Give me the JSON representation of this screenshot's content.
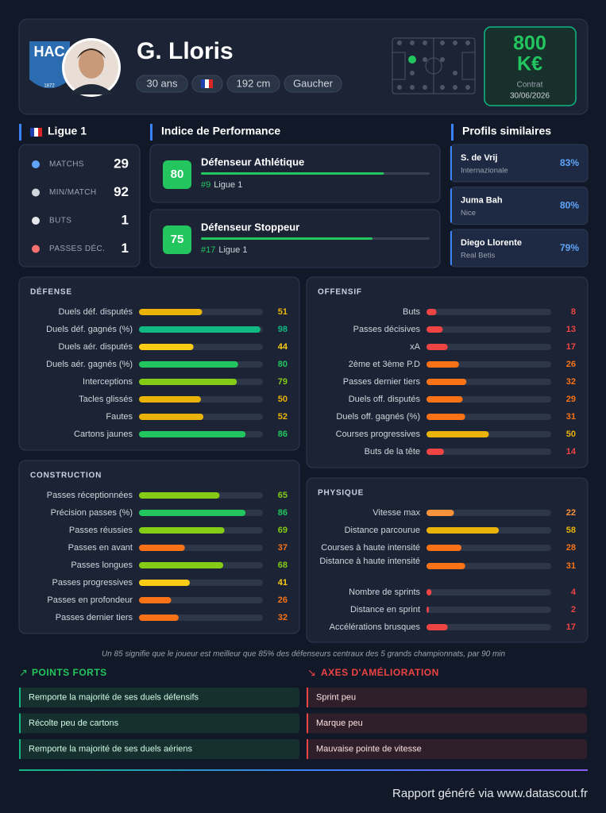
{
  "header": {
    "club_logo": {
      "text": "HAC",
      "year": "1872"
    },
    "name": "G. Lloris",
    "tags": [
      "30 ans",
      "192 cm",
      "Gaucher"
    ],
    "value": {
      "amount": "800",
      "unit": "K€",
      "contract_label": "Contrat",
      "contract_date": "30/06/2026"
    }
  },
  "league": {
    "title": "Ligue 1",
    "stats": [
      {
        "label": "MATCHS",
        "value": 29
      },
      {
        "label": "MIN/MATCH",
        "value": 92
      },
      {
        "label": "BUTS",
        "value": 1
      },
      {
        "label": "PASSES DÉC.",
        "value": 1
      }
    ]
  },
  "performance": {
    "title": "Indice de Performance",
    "profiles": [
      {
        "name": "Défenseur Athlétique",
        "score": 80,
        "rank": "#9",
        "league": "Ligue 1"
      },
      {
        "name": "Défenseur Stoppeur",
        "score": 75,
        "rank": "#17",
        "league": "Ligue 1"
      }
    ]
  },
  "similar": {
    "title": "Profils similaires",
    "players": [
      {
        "name": "S. de Vrij",
        "club": "Internazionale",
        "match": "83%"
      },
      {
        "name": "Juma Bah",
        "club": "Nice",
        "match": "80%"
      },
      {
        "name": "Diego Llorente",
        "club": "Real Betis",
        "match": "79%"
      }
    ]
  },
  "panels": [
    {
      "title": "DÉFENSE",
      "rows": [
        {
          "label": "Duels déf. disputés",
          "value": 51
        },
        {
          "label": "Duels déf. gagnés (%)",
          "value": 98
        },
        {
          "label": "Duels aér. disputés",
          "value": 44
        },
        {
          "label": "Duels aér. gagnés (%)",
          "value": 80
        },
        {
          "label": "Interceptions",
          "value": 79
        },
        {
          "label": "Tacles glissés",
          "value": 50
        },
        {
          "label": "Fautes",
          "value": 52
        },
        {
          "label": "Cartons jaunes",
          "value": 86
        }
      ]
    },
    {
      "title": "CONSTRUCTION",
      "rows": [
        {
          "label": "Passes réceptionnées",
          "value": 65
        },
        {
          "label": "Précision passes (%)",
          "value": 86
        },
        {
          "label": "Passes réussies",
          "value": 69
        },
        {
          "label": "Passes en avant",
          "value": 37
        },
        {
          "label": "Passes longues",
          "value": 68
        },
        {
          "label": "Passes progressives",
          "value": 41
        },
        {
          "label": "Passes en profondeur",
          "value": 26
        },
        {
          "label": "Passes dernier tiers",
          "value": 32
        }
      ]
    },
    {
      "title": "OFFENSIF",
      "rows": [
        {
          "label": "Buts",
          "value": 8
        },
        {
          "label": "Passes décisives",
          "value": 13
        },
        {
          "label": "xA",
          "value": 17
        },
        {
          "label": "2ème et 3ème P.D",
          "value": 26
        },
        {
          "label": "Passes dernier tiers",
          "value": 32
        },
        {
          "label": "Duels off. disputés",
          "value": 29
        },
        {
          "label": "Duels off. gagnés (%)",
          "value": 31
        },
        {
          "label": "Courses progressives",
          "value": 50
        },
        {
          "label": "Buts de la tête",
          "value": 14
        }
      ]
    },
    {
      "title": "PHYSIQUE",
      "rows": [
        {
          "label": "Vitesse max",
          "value": 22
        },
        {
          "label": "Distance parcourue",
          "value": 58
        },
        {
          "label": "Courses à haute intensité",
          "value": 28
        },
        {
          "label": "Distance à haute intensité",
          "value": 31
        },
        {
          "label": "Nombre de sprints",
          "value": 4
        },
        {
          "label": "Distance en sprint",
          "value": 2
        },
        {
          "label": "Accélérations brusques",
          "value": 17
        }
      ]
    }
  ],
  "footnote": "Un 85 signifie que le joueur est meilleur que 85% des défenseurs centraux des 5 grands championnats, par 90 min",
  "strengths": {
    "title": "POINTS FORTS",
    "items": [
      "Remporte la majorité de ses duels défensifs",
      "Récolte peu de cartons",
      "Remporte la majorité de ses duels aériens"
    ]
  },
  "improvements": {
    "title": "AXES D'AMÉLIORATION",
    "items": [
      "Sprint peu",
      "Marque peu",
      "Mauvaise pointe de vitesse"
    ]
  },
  "footer": "Rapport généré via www.datascout.fr"
}
